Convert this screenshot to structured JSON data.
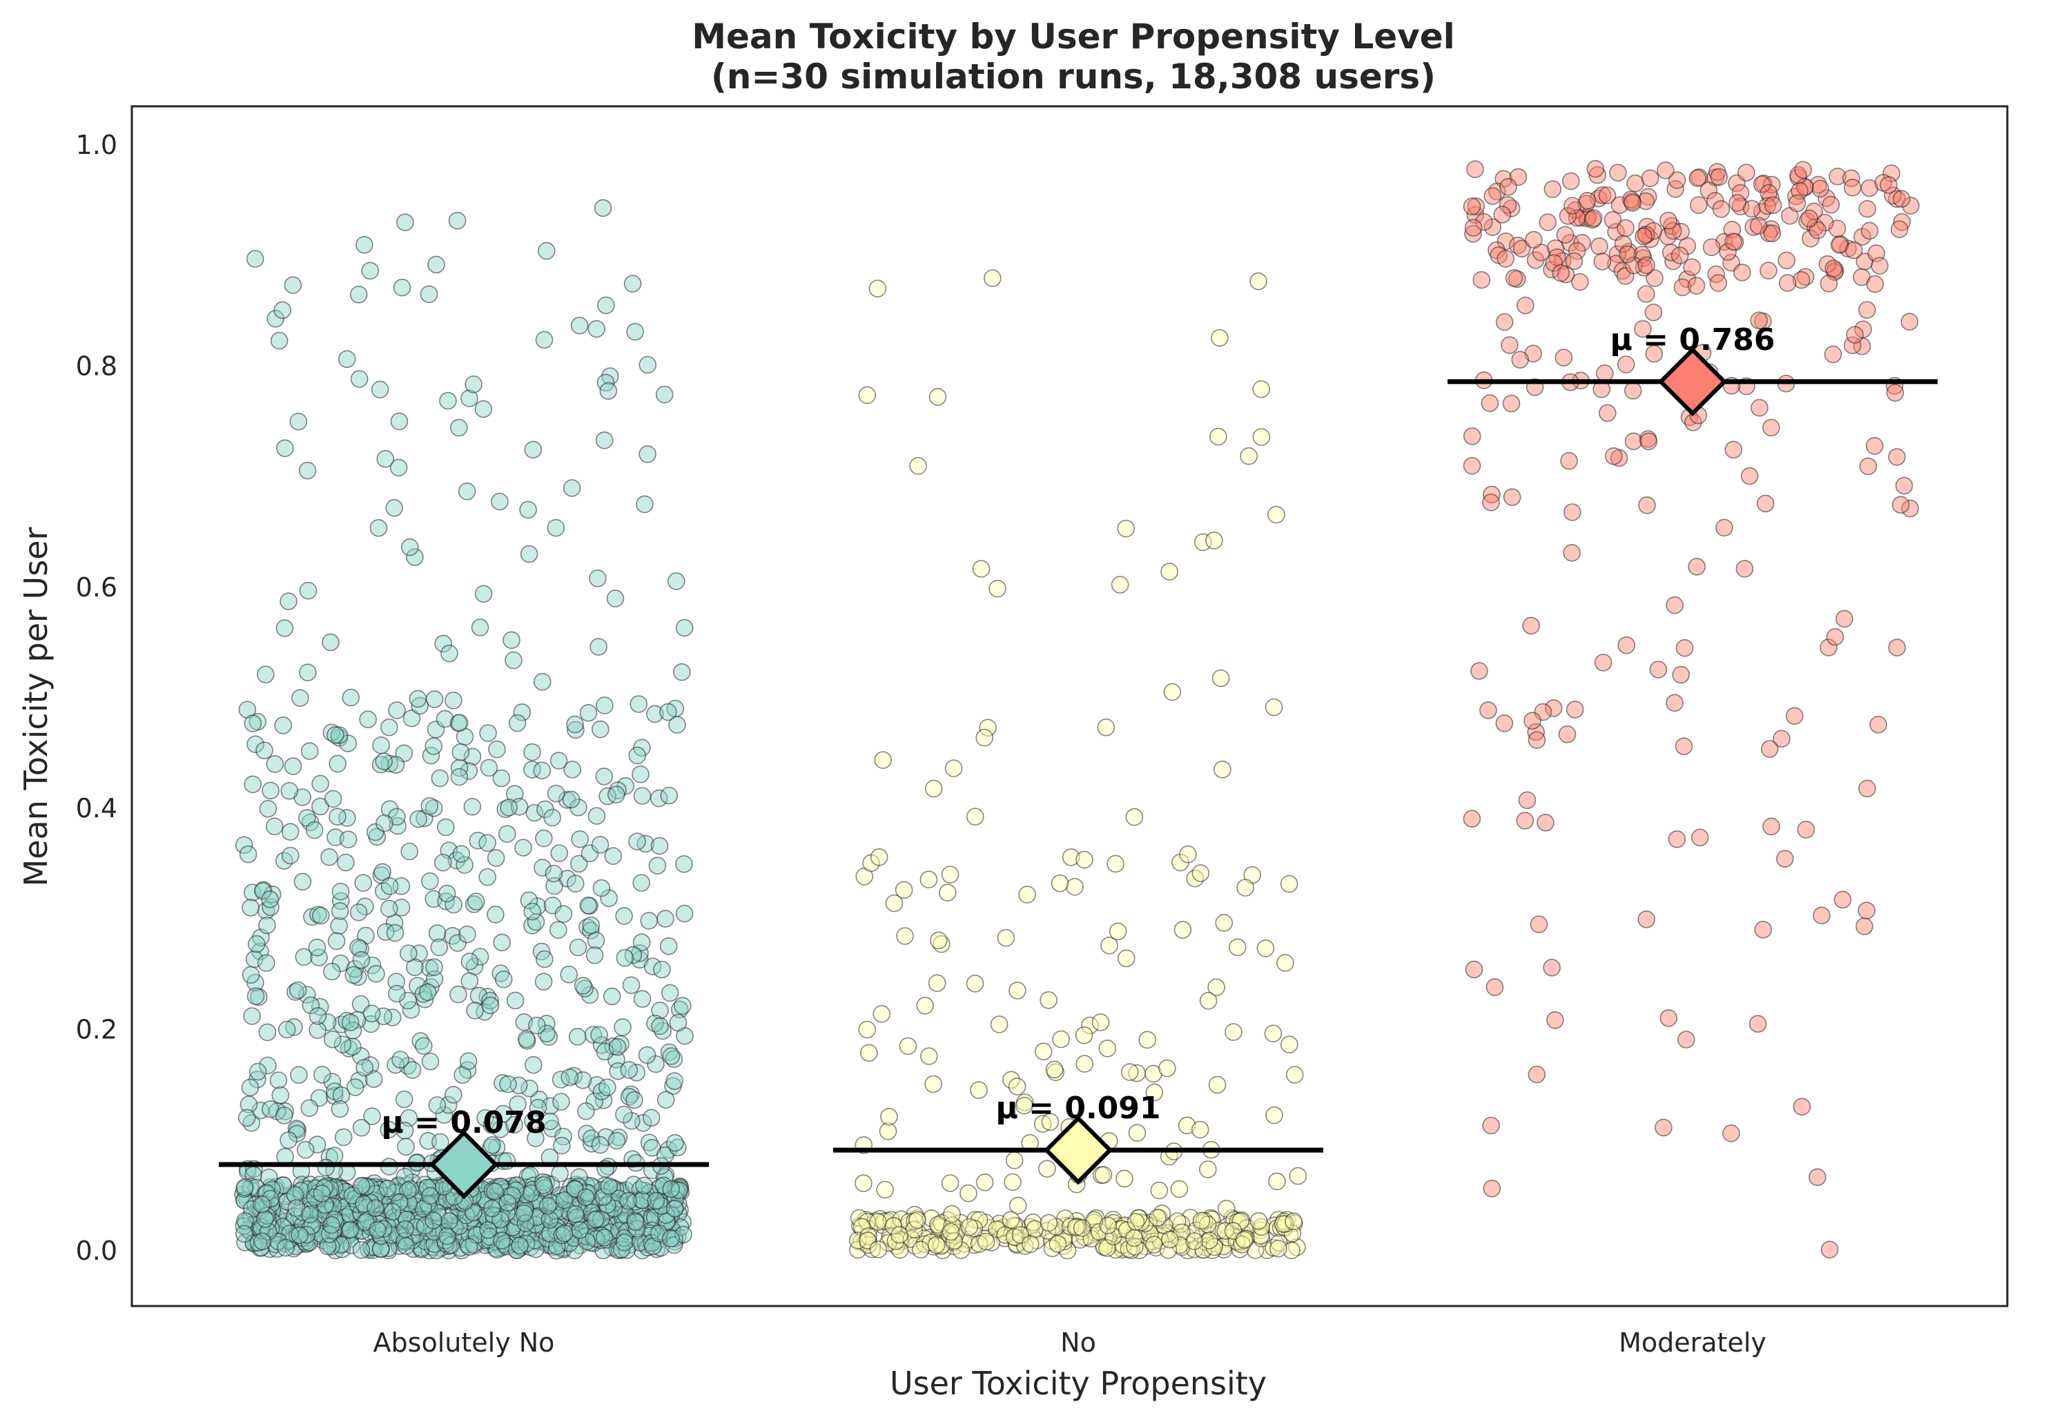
{
  "chart_data": {
    "type": "scatter",
    "title": "Mean Toxicity by User Propensity Level",
    "subtitle": "(n=30 simulation runs, 18,308 users)",
    "xlabel": "User Toxicity Propensity",
    "ylabel": "Mean Toxicity per User",
    "ylim": [
      -0.05,
      1.035
    ],
    "yticks": [
      "0.0",
      "0.2",
      "0.4",
      "0.6",
      "0.8",
      "1.0"
    ],
    "ytick_values": [
      0.0,
      0.2,
      0.4,
      0.6,
      0.8,
      1.0
    ],
    "grid": false,
    "categories": [
      "Absolutely No",
      "No",
      "Moderately"
    ],
    "groups": [
      {
        "name": "Absolutely No",
        "color": "#8dd3c7",
        "mean": 0.078,
        "mean_label": "μ = 0.078",
        "sample_points_shown": 1500,
        "distribution": "dense near 0.0, thinning toward 0.95"
      },
      {
        "name": "No",
        "color": "#ffffb3",
        "mean": 0.091,
        "mean_label": "μ = 0.091",
        "sample_points_shown": 430,
        "distribution": "dense near 0.0, sparse up to 0.88"
      },
      {
        "name": "Moderately",
        "color": "#fb8072",
        "mean": 0.786,
        "mean_label": "μ = 0.786",
        "sample_points_shown": 330,
        "distribution": "dense near 1.0, sparse down to 0.0"
      }
    ],
    "mean_line_color": "#000000",
    "axes_edge_color": "#262626"
  }
}
